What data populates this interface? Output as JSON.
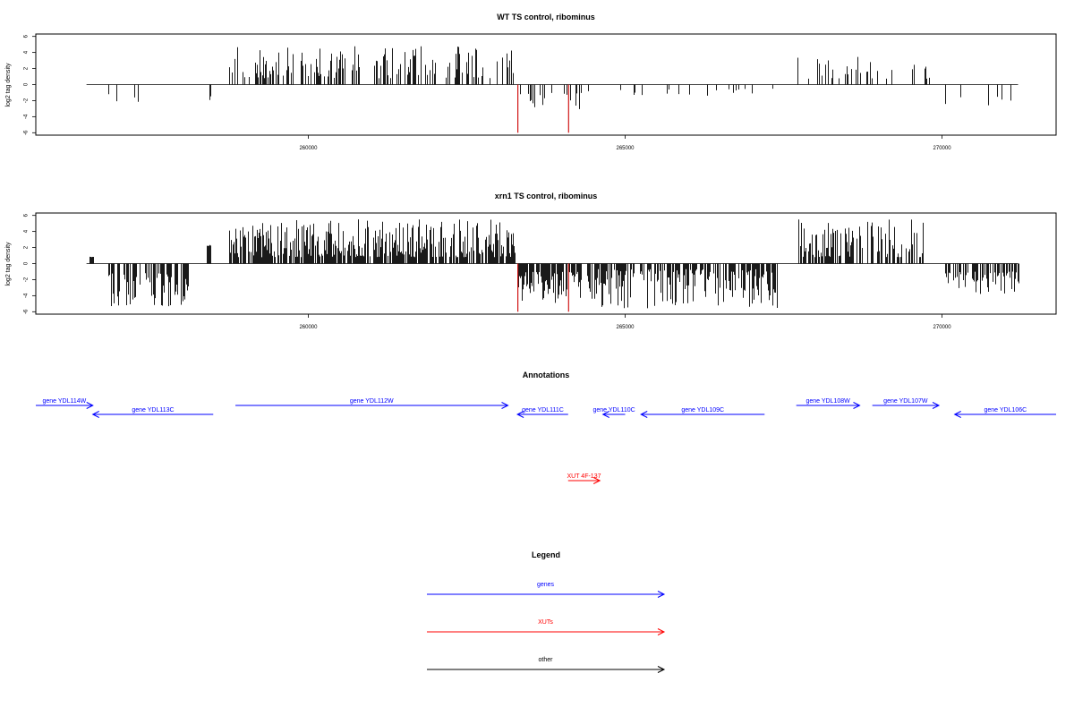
{
  "chart_data": [
    {
      "type": "bar",
      "title": "WT TS control, ribominus",
      "ylabel": "log2 tag density",
      "xlim": [
        255700,
        271800
      ],
      "ylim": [
        -6.3,
        6.3
      ],
      "yticks": [
        -6,
        -4,
        -2,
        0,
        2,
        4,
        6
      ],
      "xticks": [
        260000,
        265000,
        270000
      ],
      "x_tick_labels": [
        "260000",
        "265000",
        "270000"
      ],
      "baseline_range": [
        256500,
        271200
      ],
      "highlight_color": "#cc0000",
      "highlight_bars": [
        {
          "x": 263300,
          "value": -6
        },
        {
          "x": 264100,
          "value": -6
        }
      ],
      "segments": [
        {
          "start": 256850,
          "end": 258450,
          "sign": -1,
          "density": 0.05,
          "min": 1.2,
          "max": 2.6
        },
        {
          "start": 258750,
          "end": 263250,
          "sign": 1,
          "density": 0.4,
          "min": 0.8,
          "max": 4.8
        },
        {
          "start": 263300,
          "end": 264400,
          "sign": -1,
          "density": 0.3,
          "min": 1.0,
          "max": 3.3
        },
        {
          "start": 264400,
          "end": 267600,
          "sign": -1,
          "density": 0.08,
          "min": 0.5,
          "max": 2.0
        },
        {
          "start": 267650,
          "end": 269850,
          "sign": 1,
          "density": 0.14,
          "min": 0.7,
          "max": 3.6
        },
        {
          "start": 270050,
          "end": 271100,
          "sign": -1,
          "density": 0.06,
          "min": 1.0,
          "max": 2.6
        }
      ]
    },
    {
      "type": "bar",
      "title": "xrn1 TS control, ribominus",
      "ylabel": "log2 tag density",
      "xlim": [
        255700,
        271800
      ],
      "ylim": [
        -6.3,
        6.3
      ],
      "yticks": [
        -6,
        -4,
        -2,
        0,
        2,
        4,
        6
      ],
      "xticks": [
        260000,
        265000,
        270000
      ],
      "x_tick_labels": [
        "260000",
        "265000",
        "270000"
      ],
      "baseline_range": [
        256500,
        271200
      ],
      "highlight_color": "#cc0000",
      "highlight_bars": [
        {
          "x": 263300,
          "value": -6
        },
        {
          "x": 264100,
          "value": -6
        }
      ],
      "segments": [
        {
          "start": 256550,
          "end": 256600,
          "sign": 1,
          "density": 1.0,
          "min": 0.8,
          "max": 0.9
        },
        {
          "start": 256850,
          "end": 258100,
          "sign": -1,
          "density": 0.6,
          "min": 1.2,
          "max": 5.4
        },
        {
          "start": 258400,
          "end": 258450,
          "sign": 1,
          "density": 1.0,
          "min": 2.2,
          "max": 2.4
        },
        {
          "start": 258750,
          "end": 263250,
          "sign": 1,
          "density": 0.85,
          "min": 0.8,
          "max": 5.6
        },
        {
          "start": 263300,
          "end": 264300,
          "sign": -1,
          "density": 0.8,
          "min": 1.0,
          "max": 5.0
        },
        {
          "start": 264400,
          "end": 267400,
          "sign": -1,
          "density": 0.7,
          "min": 0.7,
          "max": 5.8
        },
        {
          "start": 267700,
          "end": 269700,
          "sign": 1,
          "density": 0.55,
          "min": 0.8,
          "max": 5.5
        },
        {
          "start": 270050,
          "end": 271200,
          "sign": -1,
          "density": 0.65,
          "min": 1.0,
          "max": 3.8
        }
      ]
    }
  ],
  "annotations": {
    "title": "Annotations",
    "items": [
      {
        "label": "gene YDL114W",
        "start": 255700,
        "end": 256600,
        "strand": "+",
        "row": 0,
        "color": "#0000ff"
      },
      {
        "label": "gene YDL113C",
        "start": 256600,
        "end": 258500,
        "strand": "-",
        "row": 1,
        "color": "#0000ff"
      },
      {
        "label": "gene YDL112W",
        "start": 258850,
        "end": 263150,
        "strand": "+",
        "row": 0,
        "color": "#0000ff"
      },
      {
        "label": "gene YDL111C",
        "start": 263300,
        "end": 264100,
        "strand": "-",
        "row": 1,
        "color": "#0000ff"
      },
      {
        "label": "gene YDL110C",
        "start": 264650,
        "end": 265000,
        "strand": "-",
        "row": 1,
        "color": "#0000ff"
      },
      {
        "label": "gene YDL109C",
        "start": 265250,
        "end": 267200,
        "strand": "-",
        "row": 1,
        "color": "#0000ff"
      },
      {
        "label": "gene YDL108W",
        "start": 267700,
        "end": 268700,
        "strand": "+",
        "row": 0,
        "color": "#0000ff"
      },
      {
        "label": "gene YDL107W",
        "start": 268900,
        "end": 269950,
        "strand": "+",
        "row": 0,
        "color": "#0000ff"
      },
      {
        "label": "gene YDL106C",
        "start": 270200,
        "end": 271800,
        "strand": "-",
        "row": 1,
        "color": "#0000ff"
      },
      {
        "label": "XUT 4F-137",
        "start": 264100,
        "end": 264600,
        "strand": "+",
        "row": 2,
        "color": "#ff0000"
      }
    ]
  },
  "legend": {
    "title": "Legend",
    "items": [
      {
        "label": "genes",
        "color": "#0000ff"
      },
      {
        "label": "XUTs",
        "color": "#ff0000"
      },
      {
        "label": "other",
        "color": "#000000"
      }
    ]
  }
}
